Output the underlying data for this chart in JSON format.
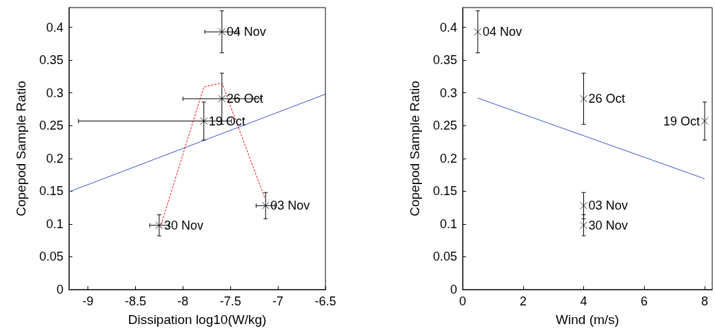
{
  "chart_data": [
    {
      "type": "scatter",
      "xlabel": "Dissipation log10(W/kg)",
      "ylabel": "Copepod Sample Ratio",
      "xlim": [
        -9.2,
        -6.5
      ],
      "xticks": [
        -9,
        -8.5,
        -8,
        -7.5,
        -7,
        -6.5
      ],
      "ylim": [
        0,
        0.43
      ],
      "yticks": [
        0,
        0.05,
        0.1,
        0.15,
        0.2,
        0.25,
        0.3,
        0.35,
        0.4
      ],
      "grid": false,
      "series": [
        {
          "color": "#000000",
          "marker": "cross",
          "x": [
            -7.59,
            -7.59,
            -7.78,
            -8.25,
            -7.13
          ],
          "values": [
            0.393,
            0.291,
            0.257,
            0.098,
            0.128
          ],
          "errors": [
            0.032,
            0.039,
            0.029,
            0.016,
            0.02
          ],
          "xerrors": [
            0.18,
            0.41,
            [
              -9.1,
              -7.49
            ],
            0.1,
            0.1
          ]
        },
        {
          "type": "line",
          "color": "#3355cc",
          "marker": "none",
          "line_style": "solid",
          "x": [
            -9.2,
            -6.5
          ],
          "values": [
            0.149,
            0.298
          ]
        },
        {
          "type": "line",
          "color": "#ff0000",
          "marker": "none",
          "line_style": "dashed",
          "x": [
            -8.23,
            -7.78,
            -7.59,
            -7.14
          ],
          "values": [
            0.099,
            0.309,
            0.315,
            0.14
          ]
        }
      ],
      "annotations": [
        {
          "text": "04 Nov",
          "x": -7.59,
          "y": 0.393
        },
        {
          "text": "26 Oct",
          "x": -7.59,
          "y": 0.291
        },
        {
          "text": "19 Oct",
          "x": -7.78,
          "y": 0.257
        },
        {
          "text": "30 Nov",
          "x": -8.25,
          "y": 0.098
        },
        {
          "text": "03 Nov",
          "x": -7.13,
          "y": 0.128
        }
      ]
    },
    {
      "type": "scatter",
      "xlabel": "Wind (m/s)",
      "ylabel": "Copepod Sample Ratio",
      "xlim": [
        0,
        8.25
      ],
      "xticks": [
        0,
        2,
        4,
        6,
        8
      ],
      "ylim": [
        0,
        0.43
      ],
      "yticks": [
        0,
        0.05,
        0.1,
        0.15,
        0.2,
        0.25,
        0.3,
        0.35,
        0.4
      ],
      "grid": false,
      "series": [
        {
          "color": "#000000",
          "marker": "cross",
          "x": [
            0.5,
            4,
            8,
            4,
            4
          ],
          "values": [
            0.393,
            0.291,
            0.257,
            0.128,
            0.098
          ],
          "errors": [
            0.032,
            0.039,
            0.029,
            0.02,
            0.016
          ]
        },
        {
          "type": "line",
          "color": "#3355cc",
          "marker": "none",
          "line_style": "solid",
          "x": [
            0.5,
            8
          ],
          "values": [
            0.292,
            0.169
          ]
        }
      ],
      "annotations": [
        {
          "text": "04 Nov",
          "x": 0.5,
          "y": 0.393
        },
        {
          "text": "26 Oct",
          "x": 4,
          "y": 0.291
        },
        {
          "text": "19 Oct",
          "x": 8,
          "y": 0.257
        },
        {
          "text": "03 Nov",
          "x": 4,
          "y": 0.128
        },
        {
          "text": "30 Nov",
          "x": 4,
          "y": 0.098
        }
      ]
    }
  ]
}
